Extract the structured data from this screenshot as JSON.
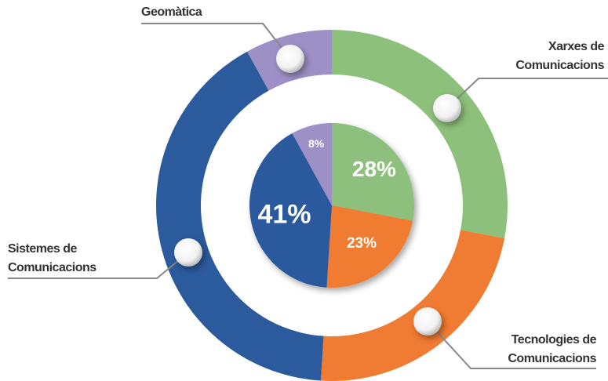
{
  "chart_data": {
    "type": "pie",
    "categories": [
      "Xarxes de Comunicacions",
      "Tecnologies de Comunicacions",
      "Sistemes de Comunicacions",
      "Geomàtica"
    ],
    "values": [
      28,
      23,
      41,
      8
    ],
    "value_labels": [
      "28%",
      "23%",
      "41%",
      "8%"
    ],
    "colors": [
      "#8dc07b",
      "#f07b32",
      "#2b5a9d",
      "#9d90c6"
    ]
  }
}
